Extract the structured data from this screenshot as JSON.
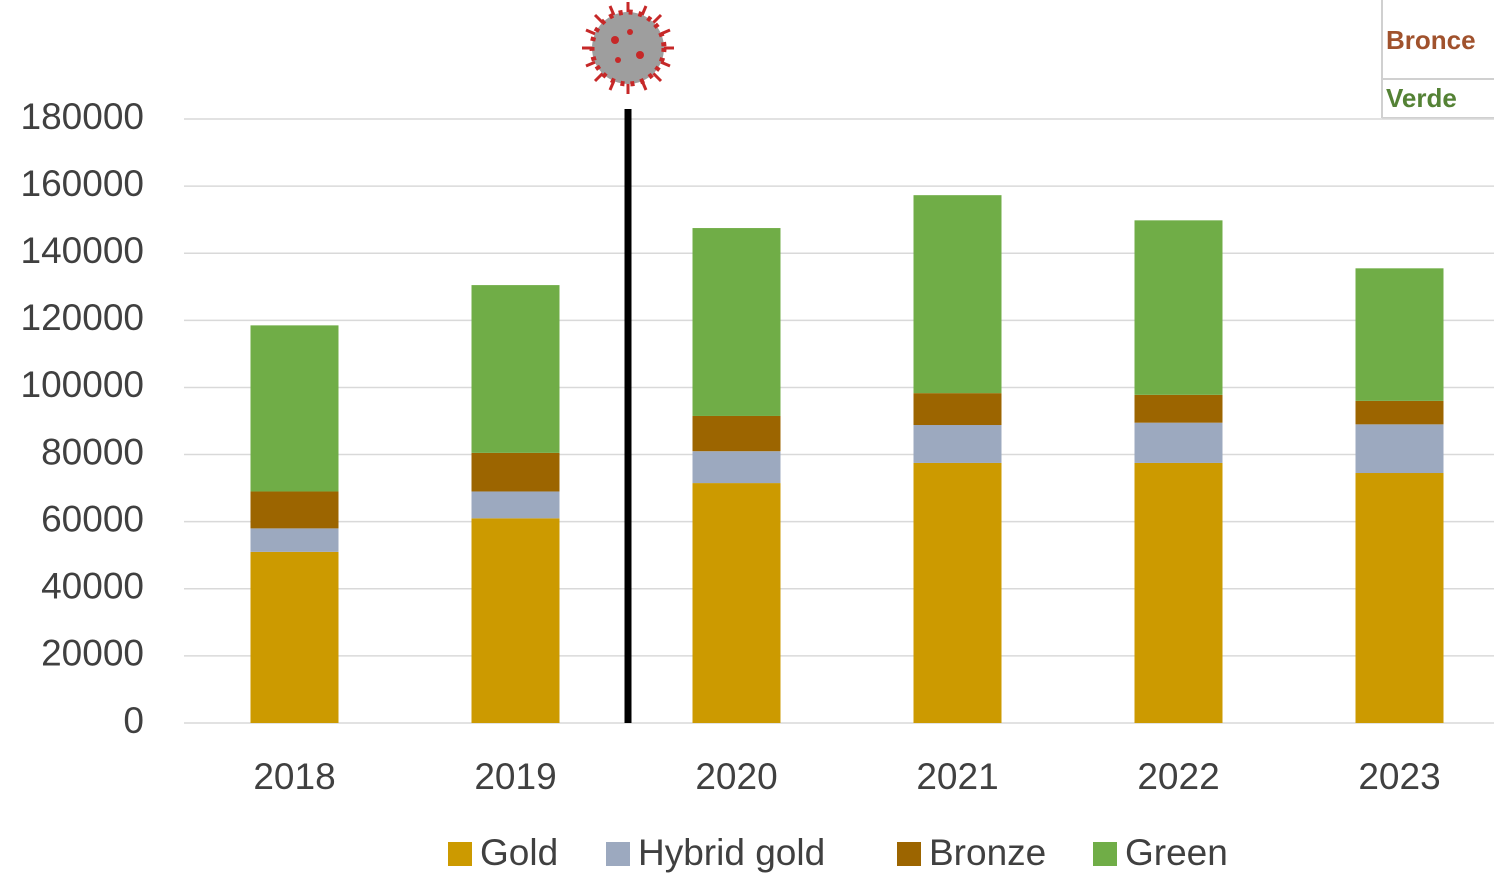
{
  "chart_data": {
    "type": "stacked_bar",
    "categories": [
      "2018",
      "2019",
      "2020",
      "2021",
      "2022",
      "2023"
    ],
    "series": [
      {
        "name": "Gold",
        "color": "#cc9a00",
        "values": [
          51000,
          61000,
          71500,
          77500,
          77500,
          74500
        ]
      },
      {
        "name": "Hybrid gold",
        "color": "#9ca9bf",
        "values": [
          7000,
          8000,
          9500,
          11300,
          12000,
          14500
        ]
      },
      {
        "name": "Bronze",
        "color": "#9c6500",
        "values": [
          11000,
          11500,
          10500,
          9500,
          8300,
          7000
        ]
      },
      {
        "name": "Green",
        "color": "#70ad47",
        "values": [
          49500,
          50000,
          56000,
          59000,
          52000,
          39500
        ]
      }
    ],
    "ylim": [
      0,
      180000
    ],
    "yticks": [
      0,
      20000,
      40000,
      60000,
      80000,
      100000,
      120000,
      140000,
      160000,
      180000
    ],
    "grid": true,
    "legend": "bottom",
    "annotations": [
      "Bronce",
      "Verde"
    ]
  }
}
